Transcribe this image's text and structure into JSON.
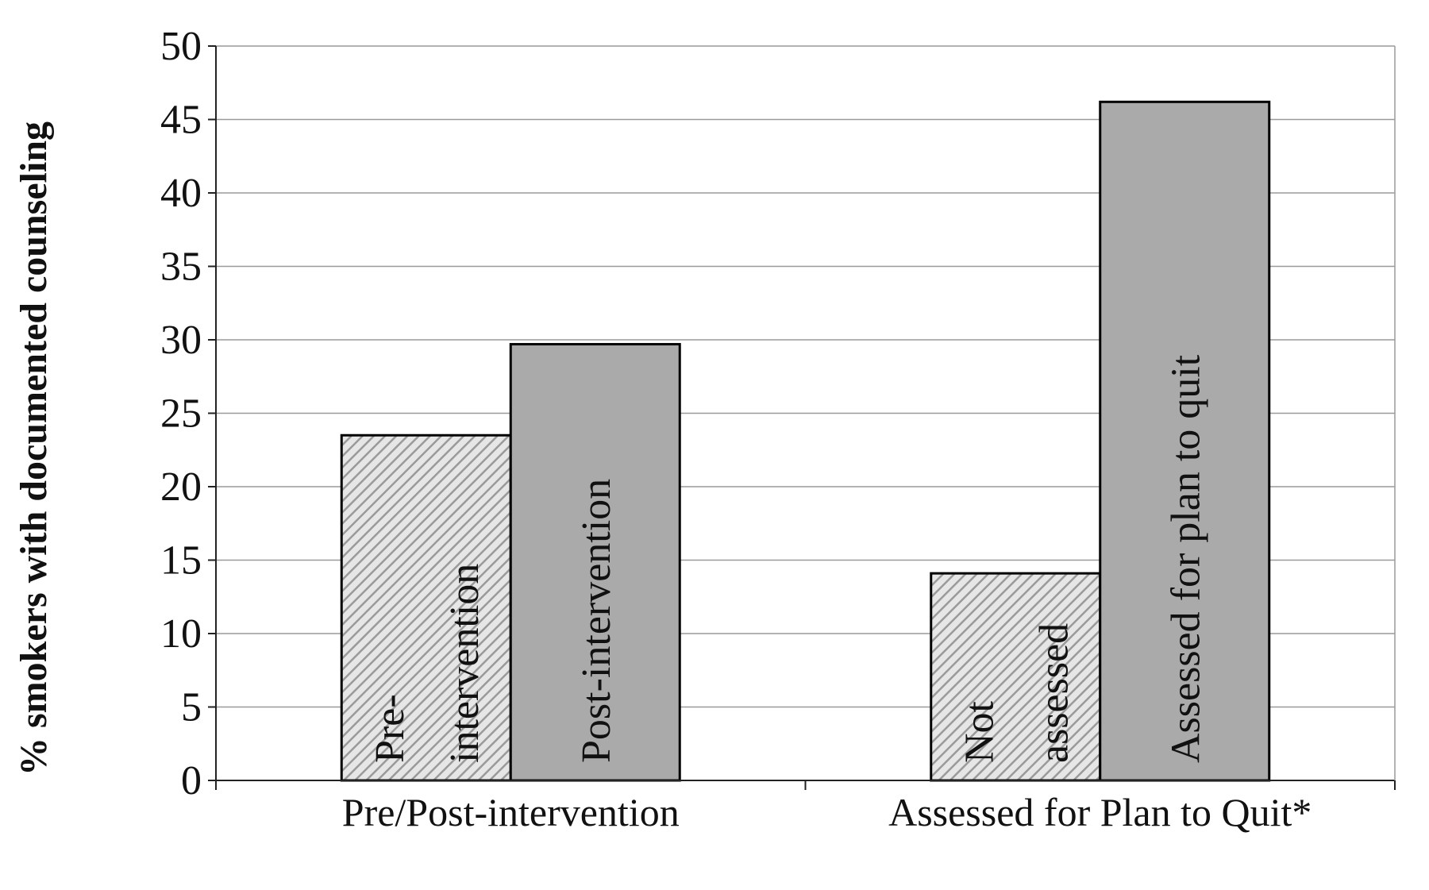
{
  "chart_data": {
    "type": "bar",
    "title": "",
    "xlabel": "",
    "ylabel": "% smokers with documented counseling",
    "ylim": [
      0,
      50
    ],
    "yticks": [
      0,
      5,
      10,
      15,
      20,
      25,
      30,
      35,
      40,
      45,
      50
    ],
    "grid": true,
    "legend": "none",
    "categories": [
      "Pre/Post-intervention",
      "Assessed for Plan to Quit*"
    ],
    "bars": [
      {
        "category": "Pre/Post-intervention",
        "label": [
          "Pre-",
          "intervention"
        ],
        "value": 23.5,
        "pattern": "hatched"
      },
      {
        "category": "Pre/Post-intervention",
        "label": [
          "Post-intervention"
        ],
        "value": 29.7,
        "pattern": "solid"
      },
      {
        "category": "Assessed for Plan to Quit*",
        "label": [
          "Not",
          "assessed"
        ],
        "value": 14.1,
        "pattern": "hatched"
      },
      {
        "category": "Assessed for Plan to Quit*",
        "label": [
          "Assessed for plan to quit"
        ],
        "value": 46.2,
        "pattern": "solid"
      }
    ],
    "colors": {
      "solid": "#aaaaaa",
      "hatch_bg": "#e6e6e6",
      "hatch_line": "#9a9a9a",
      "grid": "#9a9a9a",
      "axis": "#222222"
    }
  }
}
